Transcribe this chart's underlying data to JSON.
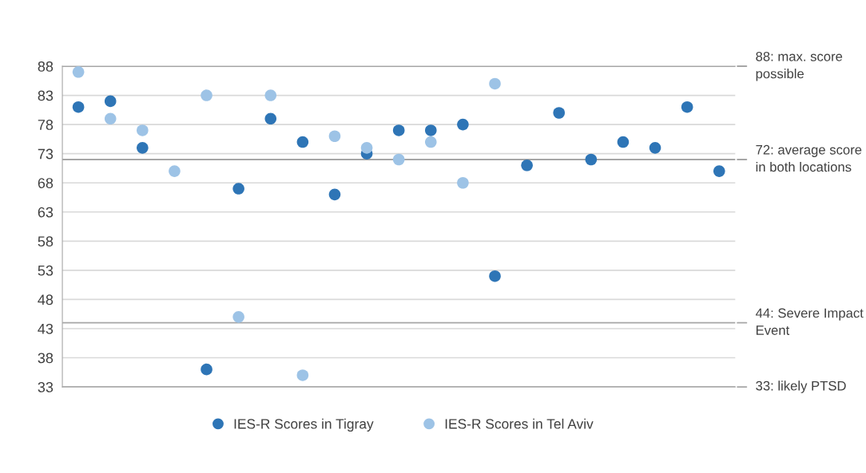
{
  "chart_data": {
    "type": "scatter",
    "categories": [
      null,
      null,
      null,
      null,
      null,
      null,
      null,
      null,
      null,
      null,
      null,
      null,
      null,
      null,
      null,
      null,
      null,
      null,
      null,
      null,
      null
    ],
    "series": [
      {
        "name": "IES-R Scores in Tigray",
        "color": "#2e75b6",
        "values": [
          81,
          82,
          74,
          null,
          36,
          67,
          79,
          75,
          66,
          73,
          77,
          77,
          78,
          52,
          71,
          80,
          72,
          75,
          74,
          81,
          70
        ]
      },
      {
        "name": "IES-R Scores in Tel Aviv",
        "color": "#9dc3e6",
        "values": [
          87,
          79,
          77,
          70,
          83,
          45,
          83,
          35,
          76,
          74,
          72,
          75,
          68,
          85,
          null,
          null,
          null,
          null,
          null,
          null,
          null
        ]
      }
    ],
    "ylim": [
      33,
      88
    ],
    "yticks": [
      33,
      38,
      43,
      48,
      53,
      58,
      63,
      68,
      73,
      78,
      83,
      88
    ],
    "ref_lines": [
      {
        "axis": "y",
        "value": 88,
        "label": "88: max. score possible",
        "color": "#a6a6a6"
      },
      {
        "axis": "y",
        "value": 72,
        "label": "72: average score in both locations",
        "color": "#a6a6a6"
      },
      {
        "axis": "y",
        "value": 44,
        "label": "44: Severe Impact Event",
        "color": "#a6a6a6"
      },
      {
        "axis": "y",
        "value": 33,
        "label": "33: likely PTSD",
        "color": "#a6a6a6"
      }
    ],
    "grid": "y",
    "legend": "bottom",
    "marker": "circle",
    "tick_labels": "y"
  }
}
